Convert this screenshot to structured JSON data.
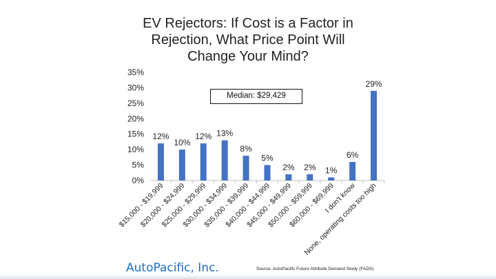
{
  "chart_data": {
    "type": "bar",
    "title_lines": [
      "EV Rejectors: If Cost is a Factor in",
      "Rejection, What Price Point Will",
      "Change Your Mind?"
    ],
    "categories": [
      "$15,000 - $19,999",
      "$20,000 - $24,999",
      "$25,000 - $29,999",
      "$30,000 - $34,999",
      "$35,000 - $39,999",
      "$40,000 - $44,999",
      "$45,000 - $49,999",
      "$50,000 - $59,999",
      "$60,000 - $69,999",
      "I don't know",
      "None, operating costs too high"
    ],
    "values": [
      12,
      10,
      12,
      13,
      8,
      5,
      2,
      2,
      1,
      6,
      29
    ],
    "value_labels": [
      "12%",
      "10%",
      "12%",
      "13%",
      "8%",
      "5%",
      "2%",
      "2%",
      "1%",
      "6%",
      "29%"
    ],
    "y_ticks": [
      "0%",
      "5%",
      "10%",
      "15%",
      "20%",
      "25%",
      "30%",
      "35%"
    ],
    "ylim": [
      0,
      35
    ],
    "bar_color": "#4472c4",
    "grid": false,
    "annotation": "Median: $29,429"
  },
  "footer": {
    "logo": "AutoPacific, Inc.",
    "source": "Source: AutoPacific Future Attribute Demand Study (FADS)"
  },
  "colors": {
    "logo": "#1f6fc0",
    "axis": "#bfbfbf",
    "text": "#222222"
  }
}
